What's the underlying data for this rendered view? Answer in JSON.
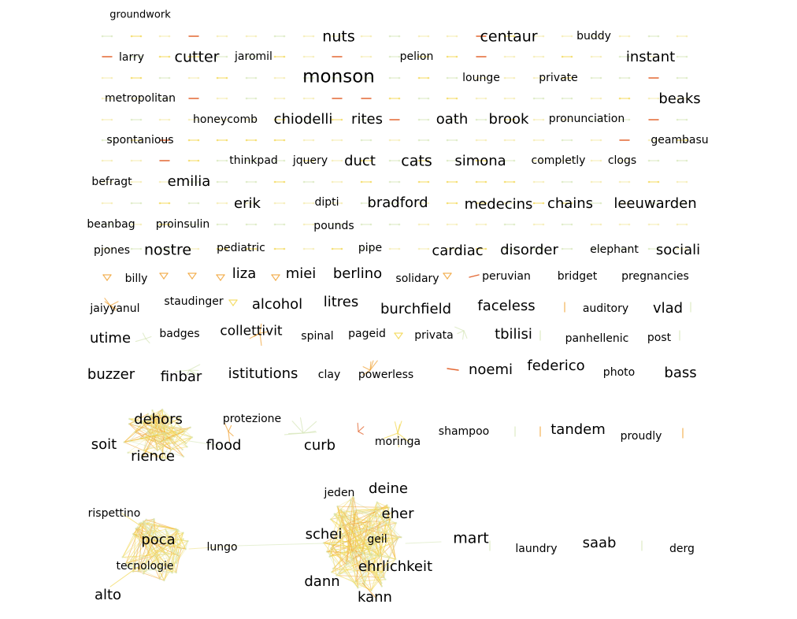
{
  "colors": {
    "background": "#ffffff",
    "label": "#000000",
    "edge_light_green": "#d6e6b8",
    "edge_pale_yellow": "#f3e9a6",
    "edge_yellow": "#f2d64a",
    "edge_orange": "#f0a030",
    "edge_red_orange": "#e0571c"
  },
  "labels": {
    "groundwork": "groundwork",
    "nuts": "nuts",
    "centaur": "centaur",
    "buddy": "buddy",
    "larry": "larry",
    "cutter": "cutter",
    "jaromil": "jaromil",
    "pelion": "pelion",
    "instant": "instant",
    "monson": "monson",
    "lounge": "lounge",
    "private": "private",
    "metropolitan": "metropolitan",
    "beaks": "beaks",
    "honeycomb": "honeycomb",
    "chiodelli": "chiodelli",
    "rites": "rites",
    "oath": "oath",
    "brook": "brook",
    "pronunciation": "pronunciation",
    "spontanious": "spontanious",
    "geambasu": "geambasu",
    "thinkpad": "thinkpad",
    "jquery": "jquery",
    "duct": "duct",
    "cats": "cats",
    "simona": "simona",
    "completly": "completly",
    "clogs": "clogs",
    "befragt": "befragt",
    "emilia": "emilia",
    "erik": "erik",
    "dipti": "dipti",
    "bradford": "bradford",
    "medecins": "medecins",
    "chains": "chains",
    "leeuwarden": "leeuwarden",
    "beanbag": "beanbag",
    "proinsulin": "proinsulin",
    "pounds": "pounds",
    "pjones": "pjones",
    "nostre": "nostre",
    "pediatric": "pediatric",
    "pipe": "pipe",
    "cardiac": "cardiac",
    "disorder": "disorder",
    "elephant": "elephant",
    "sociali": "sociali",
    "billy": "billy",
    "liza": "liza",
    "miei": "miei",
    "berlino": "berlino",
    "solidary": "solidary",
    "peruvian": "peruvian",
    "bridget": "bridget",
    "pregnancies": "pregnancies",
    "jaiyyanul": "jaiyyanul",
    "staudinger": "staudinger",
    "alcohol": "alcohol",
    "litres": "litres",
    "burchfield": "burchfield",
    "faceless": "faceless",
    "auditory": "auditory",
    "vlad": "vlad",
    "utime": "utime",
    "badges": "badges",
    "collettivit": "collettivit",
    "spinal": "spinal",
    "pageid": "pageid",
    "privata": "privata",
    "tbilisi": "tbilisi",
    "panhellenic": "panhellenic",
    "post": "post",
    "buzzer": "buzzer",
    "finbar": "finbar",
    "istitutions": "istitutions",
    "clay": "clay",
    "powerless": "powerless",
    "noemi": "noemi",
    "federico": "federico",
    "photo": "photo",
    "bass": "bass",
    "dehors": "dehors",
    "protezione": "protezione",
    "soit": "soit",
    "flood": "flood",
    "curb": "curb",
    "moringa": "moringa",
    "shampoo": "shampoo",
    "tandem": "tandem",
    "proudly": "proudly",
    "rience": "rience",
    "jeden": "jeden",
    "deine": "deine",
    "eher": "eher",
    "rispettino": "rispettino",
    "poca": "poca",
    "lungo": "lungo",
    "schei": "schei",
    "geil": "geil",
    "mart": "mart",
    "laundry": "laundry",
    "saab": "saab",
    "derg": "derg",
    "tecnologie": "tecnologie",
    "ehrlichkeit": "ehrlichkeit",
    "dann": "dann",
    "alto": "alto",
    "kann": "kann"
  }
}
